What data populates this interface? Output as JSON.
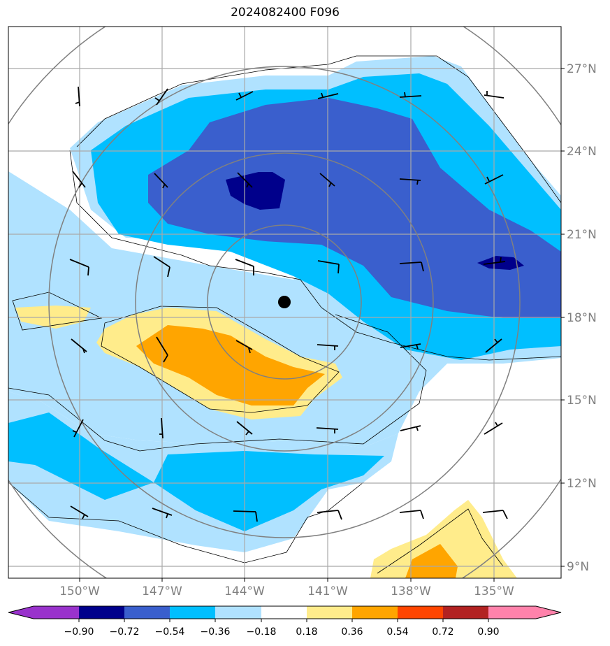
{
  "title": "2024082400 F096",
  "latitude_labels": [
    "27°N",
    "24°N",
    "21°N",
    "18°N",
    "15°N",
    "12°N",
    "9°N"
  ],
  "longitude_labels": [
    "150°W",
    "147°W",
    "144°W",
    "141°W",
    "138°W",
    "135°W"
  ],
  "colorbar": {
    "tick_labels": [
      "−0.90",
      "−0.72",
      "−0.54",
      "−0.36",
      "−0.18",
      "0.18",
      "0.36",
      "0.54",
      "0.72",
      "0.90"
    ],
    "colors": [
      "#9932cc",
      "#00008b",
      "#3a5fcd",
      "#00bfff",
      "#b0e2ff",
      "#ffffff",
      "#ffec8b",
      "#ffa500",
      "#ff4500",
      "#b22222",
      "#ff82ab"
    ]
  },
  "colors": {
    "grid": "#a9a9a9",
    "range_rings": "#808080",
    "coastline": "#000000",
    "wind_barbs": "#000000",
    "storm_center": "#000000"
  },
  "icons": [
    "storm-center-marker",
    "wind-barb"
  ]
}
